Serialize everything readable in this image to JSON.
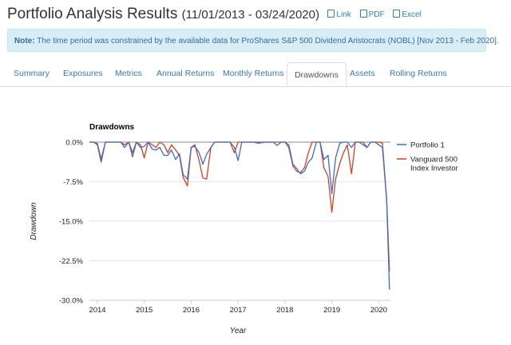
{
  "header": {
    "title": "Portfolio Analysis Results",
    "date_range": "(11/01/2013 - 03/24/2020)",
    "links": [
      {
        "label": "Link",
        "icon": "external-link-icon"
      },
      {
        "label": "PDF",
        "icon": "pdf-file-icon"
      },
      {
        "label": "Excel",
        "icon": "excel-file-icon"
      }
    ]
  },
  "note": {
    "label": "Note:",
    "text": "The time period was constrained by the available data for ProShares S&P 500 Dividend Aristocrats (NOBL) [Nov 2013 - Feb 2020]."
  },
  "tabs": [
    "Summary",
    "Exposures",
    "Metrics",
    "Annual Returns",
    "Monthly Returns",
    "Drawdowns",
    "Assets",
    "Rolling Returns"
  ],
  "active_tab": "Drawdowns",
  "colors": {
    "link": "#337ab7",
    "portfolio1": "#3a6cc7",
    "vanguard": "#d9401e",
    "note_bg": "#d9edf7"
  },
  "chart_data": {
    "type": "line",
    "title": "Drawdowns",
    "xlabel": "Year",
    "ylabel": "Drawdown",
    "xlim": [
      2013.83,
      2020.25
    ],
    "ylim": [
      -30,
      0
    ],
    "y_ticks": [
      "0.0%",
      "-7.5%",
      "-15.0%",
      "-22.5%",
      "-30.0%"
    ],
    "x_ticks": [
      "2014",
      "2015",
      "2016",
      "2017",
      "2018",
      "2019",
      "2020"
    ],
    "legend_position": "right",
    "series": [
      {
        "name": "Portfolio 1",
        "color": "#3a6cc7",
        "points": [
          [
            2013.83,
            0
          ],
          [
            2013.92,
            0
          ],
          [
            2014.0,
            -0.5
          ],
          [
            2014.08,
            -3.8
          ],
          [
            2014.17,
            0
          ],
          [
            2014.25,
            0
          ],
          [
            2014.33,
            0
          ],
          [
            2014.42,
            0
          ],
          [
            2014.5,
            0
          ],
          [
            2014.58,
            -1.0
          ],
          [
            2014.67,
            0
          ],
          [
            2014.75,
            -2.8
          ],
          [
            2014.83,
            0
          ],
          [
            2014.92,
            -1.0
          ],
          [
            2015.0,
            -0.8
          ],
          [
            2015.08,
            0
          ],
          [
            2015.17,
            -1.3
          ],
          [
            2015.25,
            -1.5
          ],
          [
            2015.33,
            -1.0
          ],
          [
            2015.42,
            -2.5
          ],
          [
            2015.5,
            -2.5
          ],
          [
            2015.58,
            -1.5
          ],
          [
            2015.67,
            -3.3
          ],
          [
            2015.75,
            -2.2
          ],
          [
            2015.83,
            -6.2
          ],
          [
            2015.92,
            -7.0
          ],
          [
            2016.0,
            -1.0
          ],
          [
            2016.08,
            -0.8
          ],
          [
            2016.17,
            -2.0
          ],
          [
            2016.25,
            -4.2
          ],
          [
            2016.33,
            -2.3
          ],
          [
            2016.42,
            -1.0
          ],
          [
            2016.5,
            0
          ],
          [
            2016.58,
            0
          ],
          [
            2016.67,
            0
          ],
          [
            2016.75,
            0
          ],
          [
            2016.83,
            0
          ],
          [
            2016.92,
            -1.0
          ],
          [
            2017.0,
            -3.5
          ],
          [
            2017.08,
            0
          ],
          [
            2017.17,
            0
          ],
          [
            2017.25,
            0
          ],
          [
            2017.33,
            0
          ],
          [
            2017.42,
            -0.2
          ],
          [
            2017.5,
            -0.1
          ],
          [
            2017.58,
            0
          ],
          [
            2017.67,
            0
          ],
          [
            2017.75,
            0
          ],
          [
            2017.83,
            -0.6
          ],
          [
            2017.92,
            0
          ],
          [
            2018.0,
            0
          ],
          [
            2018.08,
            -0.5
          ],
          [
            2018.17,
            -4.2
          ],
          [
            2018.25,
            -5.0
          ],
          [
            2018.33,
            -6.0
          ],
          [
            2018.42,
            -5.5
          ],
          [
            2018.5,
            -3.8
          ],
          [
            2018.58,
            -3.0
          ],
          [
            2018.67,
            0
          ],
          [
            2018.75,
            0
          ],
          [
            2018.83,
            -3.3
          ],
          [
            2018.92,
            -2.5
          ],
          [
            2019.0,
            -9.8
          ],
          [
            2019.08,
            -3.0
          ],
          [
            2019.17,
            -0.2
          ],
          [
            2019.25,
            0
          ],
          [
            2019.33,
            0
          ],
          [
            2019.42,
            -1.0
          ],
          [
            2019.5,
            0
          ],
          [
            2019.58,
            0
          ],
          [
            2019.67,
            -0.5
          ],
          [
            2019.75,
            -1.0
          ],
          [
            2019.83,
            0
          ],
          [
            2019.92,
            0
          ],
          [
            2020.0,
            -0.5
          ],
          [
            2020.08,
            -1.0
          ],
          [
            2020.17,
            -11.0
          ],
          [
            2020.23,
            -28.0
          ]
        ]
      },
      {
        "name": "Vanguard 500 Index Investor",
        "color": "#d9401e",
        "points": [
          [
            2013.83,
            0
          ],
          [
            2013.92,
            0
          ],
          [
            2014.0,
            -0.3
          ],
          [
            2014.08,
            -3.2
          ],
          [
            2014.17,
            0
          ],
          [
            2014.25,
            0
          ],
          [
            2014.33,
            0
          ],
          [
            2014.42,
            0
          ],
          [
            2014.5,
            0
          ],
          [
            2014.58,
            -0.5
          ],
          [
            2014.67,
            0
          ],
          [
            2014.75,
            -2.0
          ],
          [
            2014.83,
            0
          ],
          [
            2014.92,
            -0.5
          ],
          [
            2015.0,
            -3.0
          ],
          [
            2015.08,
            0
          ],
          [
            2015.17,
            -0.5
          ],
          [
            2015.25,
            -1.0
          ],
          [
            2015.33,
            0
          ],
          [
            2015.42,
            -0.5
          ],
          [
            2015.5,
            -2.0
          ],
          [
            2015.58,
            -0.5
          ],
          [
            2015.67,
            -1.5
          ],
          [
            2015.75,
            -2.5
          ],
          [
            2015.83,
            -6.7
          ],
          [
            2015.92,
            -8.3
          ],
          [
            2016.0,
            -1.0
          ],
          [
            2016.08,
            -0.5
          ],
          [
            2016.17,
            -3.5
          ],
          [
            2016.25,
            -6.8
          ],
          [
            2016.33,
            -7.0
          ],
          [
            2016.42,
            -1.0
          ],
          [
            2016.5,
            0
          ],
          [
            2016.58,
            0
          ],
          [
            2016.67,
            0
          ],
          [
            2016.75,
            0
          ],
          [
            2016.83,
            0
          ],
          [
            2016.92,
            -2.0
          ],
          [
            2017.0,
            0
          ],
          [
            2017.08,
            0
          ],
          [
            2017.17,
            0
          ],
          [
            2017.25,
            0
          ],
          [
            2017.33,
            0
          ],
          [
            2017.42,
            0
          ],
          [
            2017.5,
            0
          ],
          [
            2017.58,
            0
          ],
          [
            2017.67,
            0
          ],
          [
            2017.75,
            0
          ],
          [
            2017.83,
            0
          ],
          [
            2017.92,
            0
          ],
          [
            2018.0,
            0
          ],
          [
            2018.08,
            -1.0
          ],
          [
            2018.17,
            -4.5
          ],
          [
            2018.25,
            -5.5
          ],
          [
            2018.33,
            -5.8
          ],
          [
            2018.42,
            -4.8
          ],
          [
            2018.5,
            -2.0
          ],
          [
            2018.58,
            0
          ],
          [
            2018.67,
            0
          ],
          [
            2018.75,
            0
          ],
          [
            2018.83,
            -4.8
          ],
          [
            2018.92,
            -6.5
          ],
          [
            2019.0,
            -13.3
          ],
          [
            2019.08,
            -7.0
          ],
          [
            2019.17,
            -4.0
          ],
          [
            2019.25,
            -2.0
          ],
          [
            2019.33,
            -0.5
          ],
          [
            2019.42,
            -6.0
          ],
          [
            2019.5,
            0
          ],
          [
            2019.58,
            0
          ],
          [
            2019.67,
            0
          ],
          [
            2019.75,
            -1.0
          ],
          [
            2019.83,
            0
          ],
          [
            2019.92,
            0
          ],
          [
            2020.0,
            0
          ],
          [
            2020.08,
            -0.2
          ],
          [
            2020.17,
            -11.0
          ],
          [
            2020.23,
            -24.5
          ]
        ]
      }
    ]
  }
}
